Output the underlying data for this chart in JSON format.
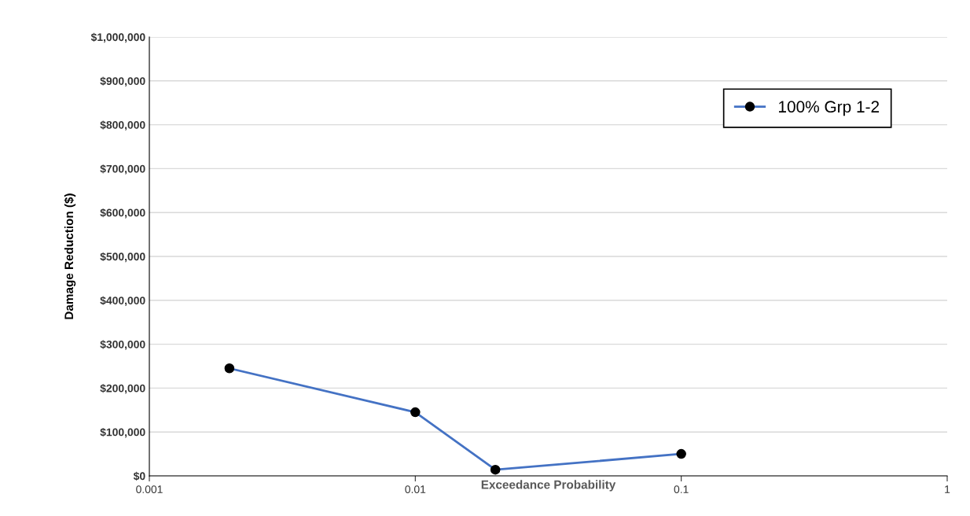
{
  "chart_data": {
    "type": "line",
    "xlabel": "Exceedance Probability",
    "ylabel": "Damage Reduction ($)",
    "x": [
      0.002,
      0.01,
      0.02,
      0.1
    ],
    "series": [
      {
        "name": "100% Grp 1-2",
        "color": "#4472c4",
        "values": [
          245000,
          145000,
          14000,
          50000
        ]
      }
    ],
    "log": "x",
    "xlim": [
      0.001,
      1
    ],
    "xticks": [
      0.001,
      0.01,
      0.1,
      1
    ],
    "ylim": [
      0,
      1000000
    ],
    "yticks": [
      {
        "value": 0,
        "label": "$0"
      },
      {
        "value": 100000,
        "label": "$100,000"
      },
      {
        "value": 200000,
        "label": "$200,000"
      },
      {
        "value": 300000,
        "label": "$300,000"
      },
      {
        "value": 400000,
        "label": "$400,000"
      },
      {
        "value": 500000,
        "label": "$500,000"
      },
      {
        "value": 600000,
        "label": "$600,000"
      },
      {
        "value": 700000,
        "label": "$700,000"
      },
      {
        "value": 800000,
        "label": "$800,000"
      },
      {
        "value": 900000,
        "label": "$900,000"
      },
      {
        "value": 1000000,
        "label": "$1,000,000"
      }
    ],
    "grid": "y",
    "legend": "top right",
    "marker": "circle",
    "line_style": "solid"
  }
}
